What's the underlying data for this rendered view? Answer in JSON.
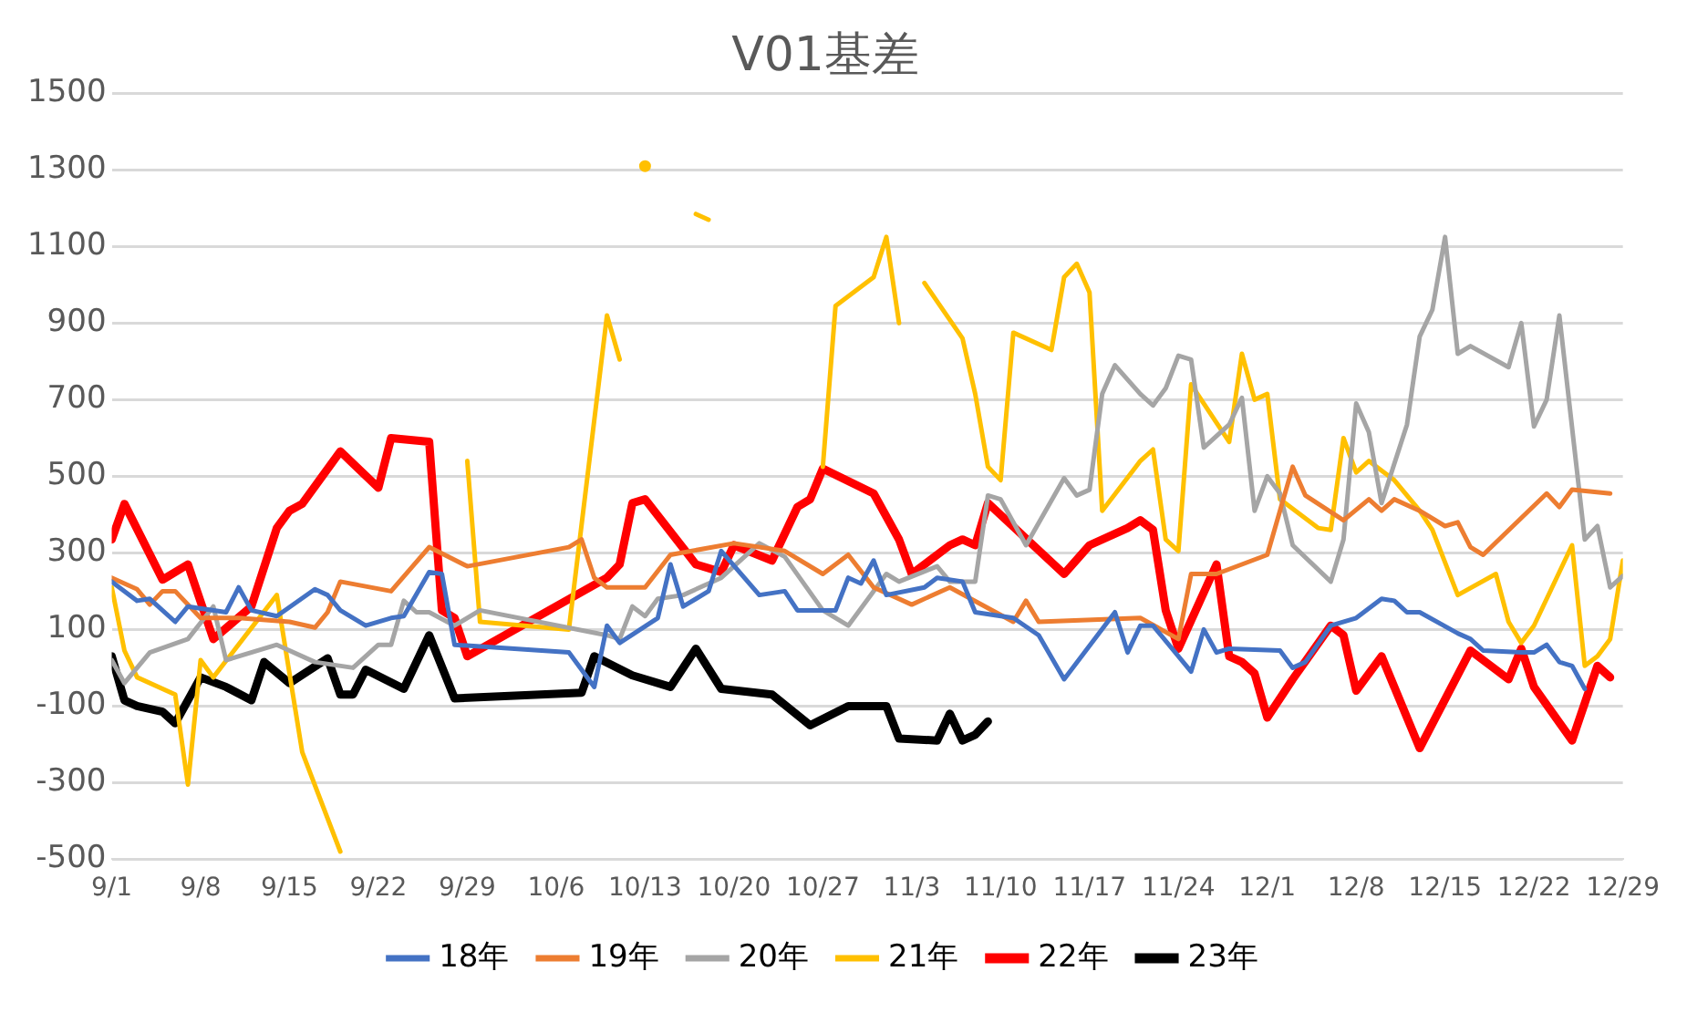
{
  "chart_data": {
    "type": "line",
    "title": "V01基差",
    "xlim": [
      "--09-01",
      "--12-29"
    ],
    "xticks": [
      {
        "value": "--09-01",
        "label": "9/1"
      },
      {
        "value": "--09-08",
        "label": "9/8"
      },
      {
        "value": "--09-15",
        "label": "9/15"
      },
      {
        "value": "--09-22",
        "label": "9/22"
      },
      {
        "value": "--09-29",
        "label": "9/29"
      },
      {
        "value": "--10-06",
        "label": "10/6"
      },
      {
        "value": "--10-13",
        "label": "10/13"
      },
      {
        "value": "--10-20",
        "label": "10/20"
      },
      {
        "value": "--10-27",
        "label": "10/27"
      },
      {
        "value": "--11-03",
        "label": "11/3"
      },
      {
        "value": "--11-10",
        "label": "11/10"
      },
      {
        "value": "--11-17",
        "label": "11/17"
      },
      {
        "value": "--11-24",
        "label": "11/24"
      },
      {
        "value": "--12-01",
        "label": "12/1"
      },
      {
        "value": "--12-08",
        "label": "12/8"
      },
      {
        "value": "--12-15",
        "label": "12/15"
      },
      {
        "value": "--12-22",
        "label": "12/22"
      },
      {
        "value": "--12-29",
        "label": "12/29"
      }
    ],
    "ylim": [
      -500,
      1500
    ],
    "yticks": [
      -500,
      -300,
      -100,
      100,
      300,
      500,
      700,
      900,
      1100,
      1300,
      1500
    ],
    "grid": "y",
    "legend": "bottom",
    "marker": "none",
    "line_style": "solid",
    "series": [
      {
        "name": "18年",
        "color": "#4472c4",
        "x": [
          "--09-01",
          "--09-03",
          "--09-04",
          "--09-06",
          "--09-07",
          "--09-10",
          "--09-11",
          "--09-12",
          "--09-14",
          "--09-17",
          "--09-18",
          "--09-19",
          "--09-21",
          "--09-23",
          "--09-24",
          "--09-26",
          "--09-27",
          "--09-28",
          "--10-07",
          "--10-09",
          "--10-10",
          "--10-11",
          "--10-14",
          "--10-15",
          "--10-16",
          "--10-18",
          "--10-19",
          "--10-22",
          "--10-24",
          "--10-25",
          "--10-28",
          "--10-29",
          "--10-30",
          "--10-31",
          "--11-01",
          "--11-04",
          "--11-05",
          "--11-07",
          "--11-08",
          "--11-11",
          "--11-13",
          "--11-15",
          "--11-19",
          "--11-20",
          "--11-21",
          "--11-22",
          "--11-25",
          "--11-26",
          "--11-27",
          "--11-28",
          "--12-02",
          "--12-03",
          "--12-04",
          "--12-06",
          "--12-08",
          "--12-10",
          "--12-11",
          "--12-12",
          "--12-13",
          "--12-16",
          "--12-17",
          "--12-18",
          "--12-21",
          "--12-22",
          "--12-23",
          "--12-24",
          "--12-25",
          "--12-26"
        ],
        "values": [
          225,
          175,
          180,
          120,
          160,
          145,
          210,
          150,
          135,
          205,
          190,
          150,
          110,
          130,
          135,
          250,
          245,
          60,
          40,
          -50,
          110,
          65,
          130,
          270,
          160,
          200,
          305,
          190,
          200,
          150,
          150,
          235,
          220,
          280,
          190,
          210,
          235,
          225,
          145,
          130,
          85,
          -30,
          145,
          40,
          110,
          110,
          -10,
          100,
          40,
          50,
          45,
          0,
          15,
          110,
          130,
          180,
          175,
          145,
          145,
          90,
          75,
          45,
          40,
          40,
          60,
          15,
          5,
          -55
        ]
      },
      {
        "name": "19年",
        "color": "#ed7d31",
        "x": [
          "--09-01",
          "--09-03",
          "--09-04",
          "--09-05",
          "--09-06",
          "--09-08",
          "--09-11",
          "--09-15",
          "--09-17",
          "--09-18",
          "--09-19",
          "--09-23",
          "--09-26",
          "--09-29",
          "--10-07",
          "--10-08",
          "--10-09",
          "--10-10",
          "--10-13",
          "--10-15",
          "--10-20",
          "--10-24",
          "--10-27",
          "--10-29",
          "--10-31",
          "--11-03",
          "--11-06",
          "--11-11",
          "--11-12",
          "--11-13",
          "--11-21",
          "--11-24",
          "--11-25",
          "--11-27",
          "--12-01",
          "--12-03",
          "--12-04",
          "--12-07",
          "--12-09",
          "--12-10",
          "--12-11",
          "--12-13",
          "--12-15",
          "--12-16",
          "--12-17",
          "--12-18",
          "--12-23",
          "--12-24",
          "--12-25",
          "--12-28"
        ],
        "values": [
          235,
          205,
          165,
          200,
          200,
          130,
          130,
          120,
          105,
          145,
          225,
          200,
          315,
          265,
          315,
          335,
          235,
          210,
          210,
          295,
          325,
          305,
          245,
          295,
          210,
          165,
          210,
          120,
          175,
          120,
          130,
          75,
          245,
          245,
          295,
          525,
          450,
          385,
          440,
          410,
          440,
          410,
          370,
          380,
          315,
          295,
          455,
          420,
          465,
          455
        ]
      },
      {
        "name": "20年",
        "color": "#a5a5a5",
        "x": [
          "--09-01",
          "--09-02",
          "--09-04",
          "--09-07",
          "--09-09",
          "--09-10",
          "--09-14",
          "--09-17",
          "--09-20",
          "--09-22",
          "--09-23",
          "--09-24",
          "--09-25",
          "--09-26",
          "--09-28",
          "--09-30",
          "--10-10",
          "--10-11",
          "--10-12",
          "--10-13",
          "--10-14",
          "--10-16",
          "--10-19",
          "--10-22",
          "--10-24",
          "--10-27",
          "--10-29",
          "--11-01",
          "--11-02",
          "--11-05",
          "--11-06",
          "--11-08",
          "--11-09",
          "--11-10",
          "--11-12",
          "--11-15",
          "--11-16",
          "--11-17",
          "--11-18",
          "--11-19",
          "--11-21",
          "--11-22",
          "--11-23",
          "--11-24",
          "--11-25",
          "--11-26",
          "--11-28",
          "--11-29",
          "--11-30",
          "--12-01",
          "--12-02",
          "--12-03",
          "--12-06",
          "--12-07",
          "--12-08",
          "--12-09",
          "--12-10",
          "--12-12",
          "--12-13",
          "--12-14",
          "--12-15",
          "--12-16",
          "--12-17",
          "--12-20",
          "--12-21",
          "--12-22",
          "--12-23",
          "--12-24",
          "--12-26",
          "--12-27",
          "--12-28",
          "--12-29"
        ],
        "values": [
          20,
          -40,
          40,
          75,
          160,
          20,
          60,
          15,
          0,
          60,
          60,
          175,
          145,
          145,
          110,
          150,
          85,
          75,
          160,
          135,
          180,
          190,
          235,
          325,
          290,
          150,
          110,
          245,
          225,
          265,
          225,
          225,
          450,
          440,
          320,
          495,
          450,
          465,
          715,
          790,
          715,
          685,
          730,
          815,
          805,
          575,
          635,
          705,
          410,
          500,
          455,
          320,
          225,
          335,
          690,
          615,
          430,
          635,
          865,
          935,
          1125,
          820,
          840,
          785,
          900,
          630,
          700,
          920,
          335,
          370,
          210,
          240
        ]
      },
      {
        "name": "21年",
        "color": "#ffc000",
        "x": [
          "--09-01",
          "--09-02",
          "--09-03",
          "--09-06",
          "--09-07",
          "--09-08",
          "--09-09",
          "--09-14",
          "--09-16",
          "--09-19",
          "--09-22",
          "--09-28",
          "--09-29",
          "--09-30",
          "--10-07",
          "--10-10",
          "--10-11",
          "--10-12",
          "--10-13",
          "--10-14",
          "--10-17",
          "--10-18",
          "--10-19",
          "--10-26",
          "--10-27",
          "--10-28",
          "--10-31",
          "--11-01",
          "--11-02",
          "--11-03",
          "--11-04",
          "--11-07",
          "--11-08",
          "--11-09",
          "--11-10",
          "--11-11",
          "--11-14",
          "--11-15",
          "--11-16",
          "--11-17",
          "--11-18",
          "--11-21",
          "--11-22",
          "--11-23",
          "--11-24",
          "--11-25",
          "--11-28",
          "--11-29",
          "--11-30",
          "--12-01",
          "--12-02",
          "--12-05",
          "--12-06",
          "--12-07",
          "--12-08",
          "--12-09",
          "--12-11",
          "--12-13",
          "--12-14",
          "--12-16",
          "--12-19",
          "--12-20",
          "--12-21",
          "--12-22",
          "--12-25",
          "--12-26",
          "--12-27",
          "--12-28",
          "--12-29"
        ],
        "values": [
          210,
          45,
          -25,
          -70,
          -305,
          20,
          -25,
          190,
          -220,
          -480,
          null,
          null,
          540,
          120,
          100,
          920,
          805,
          null,
          1310,
          null,
          1185,
          1170,
          null,
          null,
          525,
          945,
          1020,
          1125,
          900,
          null,
          1005,
          860,
          715,
          525,
          490,
          875,
          830,
          1020,
          1055,
          980,
          410,
          540,
          570,
          335,
          305,
          740,
          590,
          820,
          700,
          715,
          440,
          365,
          360,
          600,
          510,
          540,
          490,
          410,
          360,
          190,
          245,
          120,
          65,
          110,
          320,
          5,
          30,
          75,
          280
        ]
      },
      {
        "name": "22年",
        "color": "#ff0000",
        "x": [
          "--09-01",
          "--09-02",
          "--09-05",
          "--09-07",
          "--09-09",
          "--09-12",
          "--09-14",
          "--09-15",
          "--09-16",
          "--09-19",
          "--09-22",
          "--09-23",
          "--09-26",
          "--09-27",
          "--09-28",
          "--09-29",
          "--10-10",
          "--10-11",
          "--10-12",
          "--10-13",
          "--10-17",
          "--10-19",
          "--10-20",
          "--10-23",
          "--10-25",
          "--10-26",
          "--10-27",
          "--10-31",
          "--11-02",
          "--11-03",
          "--11-06",
          "--11-07",
          "--11-08",
          "--11-09",
          "--11-15",
          "--11-17",
          "--11-20",
          "--11-21",
          "--11-22",
          "--11-23",
          "--11-24",
          "--11-27",
          "--11-28",
          "--11-29",
          "--11-30",
          "--12-01",
          "--12-03",
          "--12-06",
          "--12-07",
          "--12-08",
          "--12-10",
          "--12-13",
          "--12-17",
          "--12-20",
          "--12-21",
          "--12-22",
          "--12-25",
          "--12-27",
          "--12-28"
        ],
        "values": [
          335,
          428,
          230,
          270,
          75,
          160,
          365,
          410,
          428,
          565,
          470,
          600,
          590,
          150,
          130,
          30,
          235,
          270,
          430,
          440,
          270,
          250,
          320,
          280,
          420,
          440,
          520,
          455,
          335,
          245,
          320,
          335,
          320,
          430,
          245,
          320,
          365,
          385,
          360,
          150,
          50,
          270,
          30,
          15,
          -15,
          -130,
          -30,
          110,
          85,
          -60,
          30,
          -210,
          45,
          -30,
          50,
          -50,
          -190,
          5,
          -25
        ]
      },
      {
        "name": "23年",
        "color": "#000000",
        "x": [
          "--09-01",
          "--09-02",
          "--09-03",
          "--09-05",
          "--09-06",
          "--09-08",
          "--09-10",
          "--09-12",
          "--09-13",
          "--09-15",
          "--09-18",
          "--09-19",
          "--09-20",
          "--09-21",
          "--09-24",
          "--09-26",
          "--09-28",
          "--10-08",
          "--10-09",
          "--10-12",
          "--10-15",
          "--10-17",
          "--10-19",
          "--10-23",
          "--10-26",
          "--10-29",
          "--11-01",
          "--11-02",
          "--11-05",
          "--11-06",
          "--11-07",
          "--11-08",
          "--11-09"
        ],
        "values": [
          30,
          -85,
          -100,
          -115,
          -145,
          -25,
          -50,
          -85,
          15,
          -40,
          25,
          -70,
          -70,
          -5,
          -55,
          85,
          -80,
          -65,
          30,
          -20,
          -50,
          50,
          -55,
          -70,
          -150,
          -100,
          -100,
          -185,
          -190,
          -120,
          -190,
          -175,
          -140
        ]
      }
    ]
  }
}
